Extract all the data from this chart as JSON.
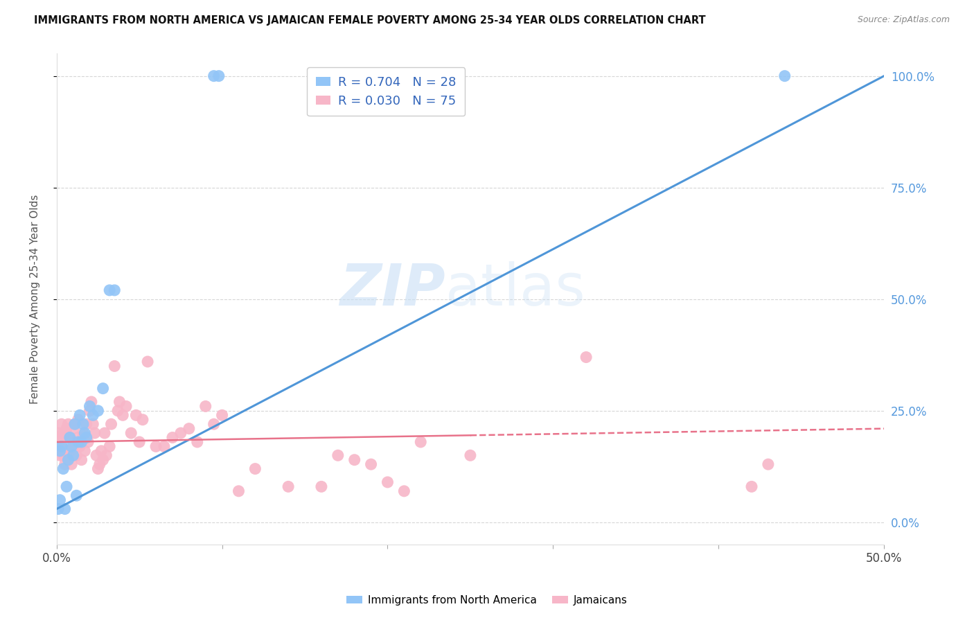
{
  "title": "IMMIGRANTS FROM NORTH AMERICA VS JAMAICAN FEMALE POVERTY AMONG 25-34 YEAR OLDS CORRELATION CHART",
  "source": "Source: ZipAtlas.com",
  "ylabel": "Female Poverty Among 25-34 Year Olds",
  "legend_blue_label": "Immigrants from North America",
  "legend_pink_label": "Jamaicans",
  "watermark_zip": "ZIP",
  "watermark_atlas": "atlas",
  "bg_color": "#ffffff",
  "blue_color": "#92c5f7",
  "pink_color": "#f7b6c8",
  "line_blue_color": "#4f96d8",
  "line_pink_color": "#e8728a",
  "legend_blue_r": "R = 0.704",
  "legend_blue_n": "N = 28",
  "legend_pink_r": "R = 0.030",
  "legend_pink_n": "N = 75",
  "blue_points_x": [
    0.001,
    0.002,
    0.002,
    0.003,
    0.004,
    0.005,
    0.006,
    0.007,
    0.008,
    0.009,
    0.01,
    0.011,
    0.012,
    0.013,
    0.014,
    0.015,
    0.016,
    0.017,
    0.018,
    0.02,
    0.022,
    0.025,
    0.028,
    0.032,
    0.035,
    0.095,
    0.098,
    0.44
  ],
  "blue_points_y": [
    0.03,
    0.05,
    0.16,
    0.17,
    0.12,
    0.03,
    0.08,
    0.14,
    0.19,
    0.17,
    0.15,
    0.22,
    0.06,
    0.18,
    0.24,
    0.18,
    0.22,
    0.2,
    0.19,
    0.26,
    0.24,
    0.25,
    0.3,
    0.52,
    0.52,
    1.0,
    1.0,
    1.0
  ],
  "pink_points_x": [
    0.001,
    0.001,
    0.002,
    0.002,
    0.003,
    0.003,
    0.004,
    0.004,
    0.005,
    0.005,
    0.006,
    0.006,
    0.007,
    0.007,
    0.008,
    0.008,
    0.009,
    0.01,
    0.01,
    0.011,
    0.012,
    0.013,
    0.013,
    0.014,
    0.015,
    0.016,
    0.017,
    0.018,
    0.019,
    0.02,
    0.021,
    0.022,
    0.023,
    0.024,
    0.025,
    0.026,
    0.027,
    0.028,
    0.029,
    0.03,
    0.032,
    0.033,
    0.035,
    0.037,
    0.038,
    0.04,
    0.042,
    0.045,
    0.048,
    0.05,
    0.052,
    0.055,
    0.06,
    0.065,
    0.07,
    0.075,
    0.08,
    0.085,
    0.09,
    0.095,
    0.1,
    0.11,
    0.12,
    0.14,
    0.16,
    0.17,
    0.18,
    0.19,
    0.2,
    0.21,
    0.22,
    0.25,
    0.32,
    0.42,
    0.43
  ],
  "pink_points_y": [
    0.17,
    0.2,
    0.15,
    0.19,
    0.18,
    0.22,
    0.2,
    0.15,
    0.13,
    0.2,
    0.16,
    0.21,
    0.14,
    0.22,
    0.19,
    0.16,
    0.13,
    0.17,
    0.21,
    0.22,
    0.15,
    0.19,
    0.23,
    0.17,
    0.14,
    0.2,
    0.16,
    0.22,
    0.18,
    0.25,
    0.27,
    0.22,
    0.2,
    0.15,
    0.12,
    0.13,
    0.16,
    0.14,
    0.2,
    0.15,
    0.17,
    0.22,
    0.35,
    0.25,
    0.27,
    0.24,
    0.26,
    0.2,
    0.24,
    0.18,
    0.23,
    0.36,
    0.17,
    0.17,
    0.19,
    0.2,
    0.21,
    0.18,
    0.26,
    0.22,
    0.24,
    0.07,
    0.12,
    0.08,
    0.08,
    0.15,
    0.14,
    0.13,
    0.09,
    0.07,
    0.18,
    0.15,
    0.37,
    0.08,
    0.13
  ],
  "xlim": [
    0.0,
    0.5
  ],
  "ylim": [
    -0.05,
    1.05
  ],
  "blue_trend": [
    0.0,
    0.5,
    0.03,
    1.0
  ],
  "pink_trend_solid": [
    0.0,
    0.25,
    0.18,
    0.195
  ],
  "pink_trend_dashed": [
    0.25,
    0.5,
    0.195,
    0.21
  ],
  "y_ticks": [
    0.0,
    0.25,
    0.5,
    0.75,
    1.0
  ],
  "y_tick_labels_right": [
    "0.0%",
    "25.0%",
    "50.0%",
    "75.0%",
    "100.0%"
  ],
  "x_ticks": [
    0.0,
    0.1,
    0.2,
    0.3,
    0.4,
    0.5
  ],
  "x_tick_labels": [
    "0.0%",
    "",
    "",
    "",
    "",
    "50.0%"
  ]
}
